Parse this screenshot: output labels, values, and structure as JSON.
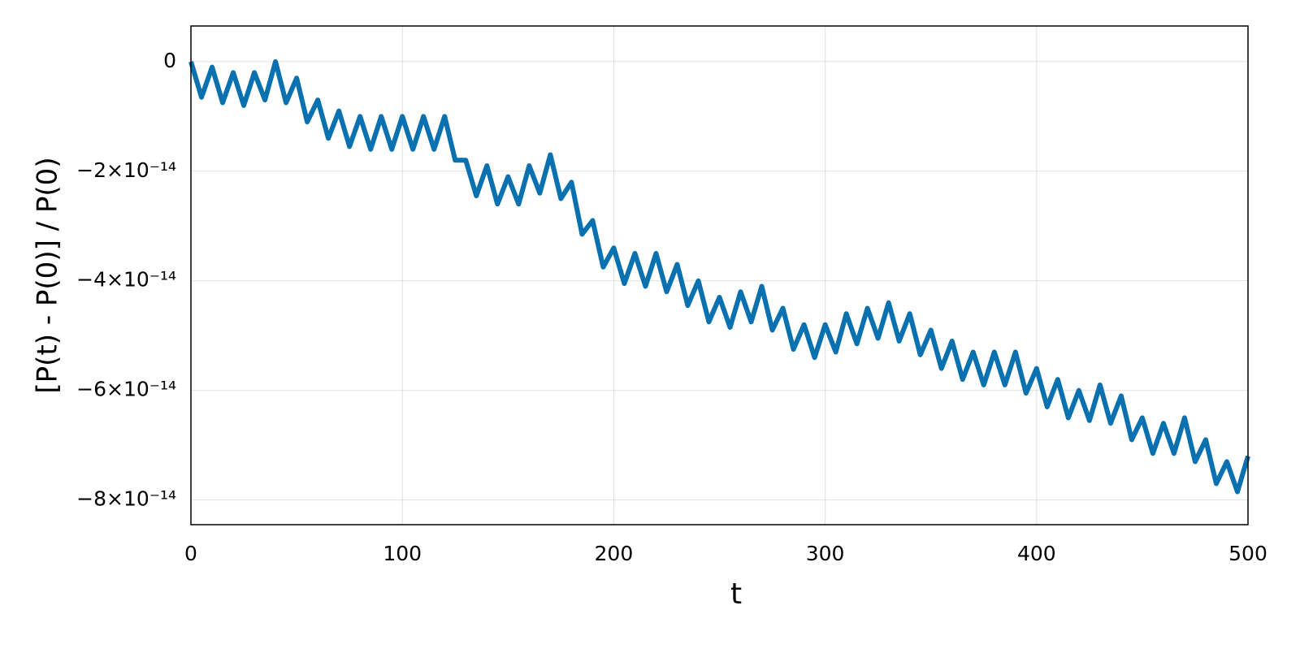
{
  "chart_data": {
    "type": "line",
    "x_label": "t",
    "y_label": "[P(t) - P(0)] / P(0)",
    "x": [
      0,
      5,
      10,
      15,
      20,
      25,
      30,
      35,
      40,
      45,
      50,
      55,
      60,
      65,
      70,
      75,
      80,
      85,
      90,
      95,
      100,
      105,
      110,
      115,
      120,
      125,
      130,
      135,
      140,
      145,
      150,
      155,
      160,
      165,
      170,
      175,
      180,
      185,
      190,
      195,
      200,
      205,
      210,
      215,
      220,
      225,
      230,
      235,
      240,
      245,
      250,
      255,
      260,
      265,
      270,
      275,
      280,
      285,
      290,
      295,
      300,
      305,
      310,
      315,
      320,
      325,
      330,
      335,
      340,
      345,
      350,
      355,
      360,
      365,
      370,
      375,
      380,
      385,
      390,
      395,
      400,
      405,
      410,
      415,
      420,
      425,
      430,
      435,
      440,
      445,
      450,
      455,
      460,
      465,
      470,
      475,
      480,
      485,
      490,
      495,
      500
    ],
    "series": [
      {
        "name": "P",
        "color": "#0a71b0",
        "values": [
          0,
          -6.5e-15,
          -1e-15,
          -7.5e-15,
          -2e-15,
          -8e-15,
          -2e-15,
          -7e-15,
          0,
          -7.5e-15,
          -3e-15,
          -1.1e-14,
          -7e-15,
          -1.4e-14,
          -9e-15,
          -1.55e-14,
          -1e-14,
          -1.6e-14,
          -1e-14,
          -1.6e-14,
          -1e-14,
          -1.6e-14,
          -1e-14,
          -1.6e-14,
          -1e-14,
          -1.8e-14,
          -1.8e-14,
          -2.45e-14,
          -1.9e-14,
          -2.6e-14,
          -2.1e-14,
          -2.6e-14,
          -1.9e-14,
          -2.4e-14,
          -1.7e-14,
          -2.5e-14,
          -2.2e-14,
          -3.15e-14,
          -2.9e-14,
          -3.75e-14,
          -3.4e-14,
          -4.05e-14,
          -3.5e-14,
          -4.1e-14,
          -3.5e-14,
          -4.2e-14,
          -3.7e-14,
          -4.45e-14,
          -4e-14,
          -4.75e-14,
          -4.3e-14,
          -4.85e-14,
          -4.2e-14,
          -4.75e-14,
          -4.1e-14,
          -4.9e-14,
          -4.5e-14,
          -5.25e-14,
          -4.8e-14,
          -5.4e-14,
          -4.8e-14,
          -5.3e-14,
          -4.6e-14,
          -5.15e-14,
          -4.5e-14,
          -5.05e-14,
          -4.4e-14,
          -5.1e-14,
          -4.6e-14,
          -5.35e-14,
          -4.9e-14,
          -5.6e-14,
          -5.1e-14,
          -5.8e-14,
          -5.3e-14,
          -5.9e-14,
          -5.3e-14,
          -5.9e-14,
          -5.3e-14,
          -6.05e-14,
          -5.6e-14,
          -6.3e-14,
          -5.8e-14,
          -6.5e-14,
          -6e-14,
          -6.55e-14,
          -5.9e-14,
          -6.6e-14,
          -6.1e-14,
          -6.9e-14,
          -6.5e-14,
          -7.15e-14,
          -6.6e-14,
          -7.15e-14,
          -6.5e-14,
          -7.3e-14,
          -6.9e-14,
          -7.7e-14,
          -7.3e-14,
          -7.85e-14,
          -7.2e-14
        ]
      }
    ],
    "xlim": [
      0,
      500
    ],
    "xticks": [
      0,
      100,
      200,
      300,
      400,
      500
    ],
    "ylim": [
      -8.45e-14,
      6.5e-15
    ],
    "yticks": [
      0,
      {
        "value": -2e-14,
        "label": "−2×10⁻¹⁴"
      },
      {
        "value": -4e-14,
        "label": "−4×10⁻¹⁴"
      },
      {
        "value": -6e-14,
        "label": "−6×10⁻¹⁴"
      },
      {
        "value": -8e-14,
        "label": "−8×10⁻¹⁴"
      }
    ],
    "grid": true
  }
}
